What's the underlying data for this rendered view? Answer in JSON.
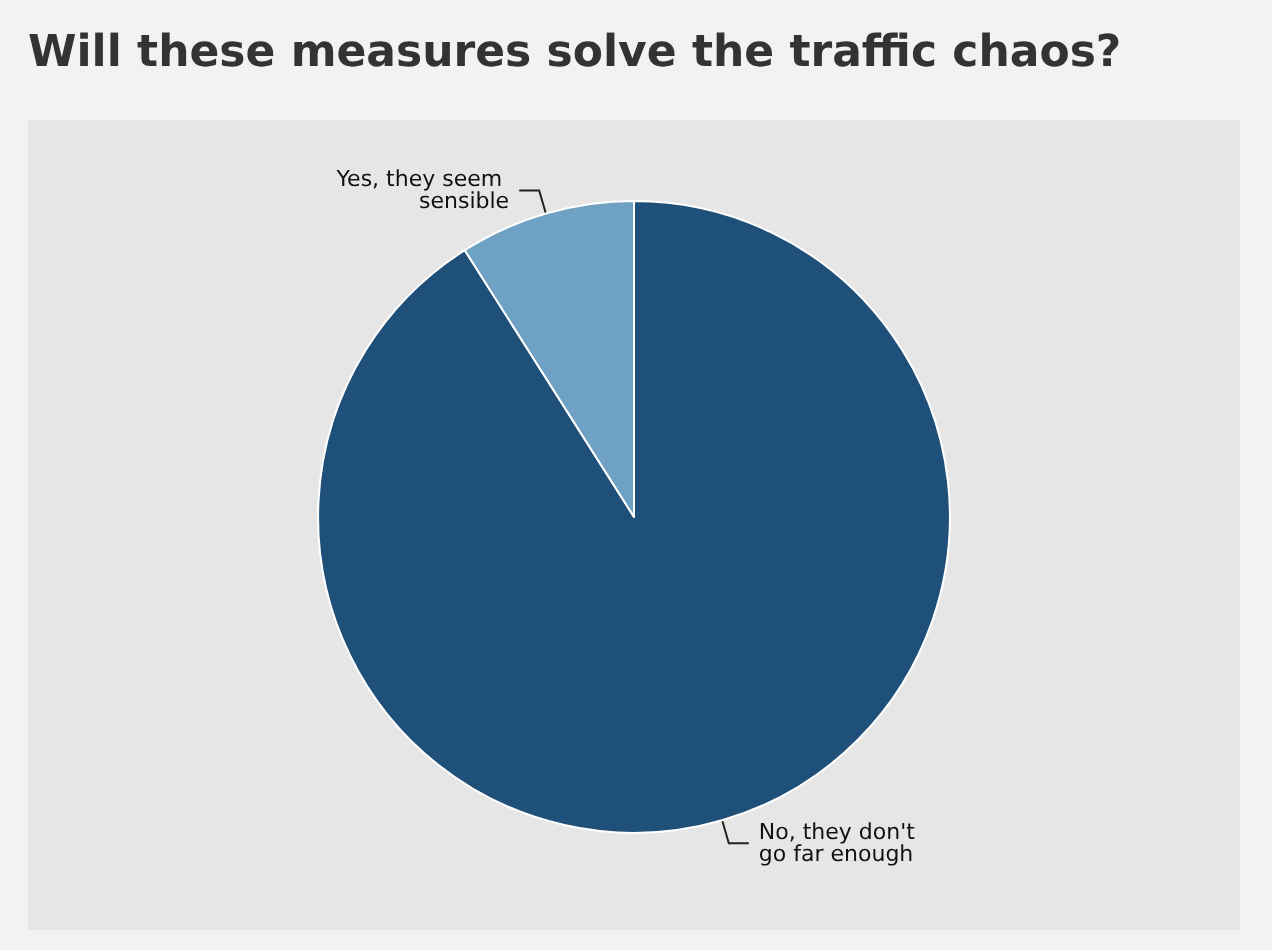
{
  "chart_data": {
    "type": "pie",
    "title": "Will these measures solve the traffic chaos?",
    "categories": [
      "No, they don't go far enough",
      "Yes, they seem sensible"
    ],
    "values": [
      91,
      9
    ],
    "colors": [
      "#1f5079",
      "#6fa1c4"
    ],
    "legend": false
  }
}
